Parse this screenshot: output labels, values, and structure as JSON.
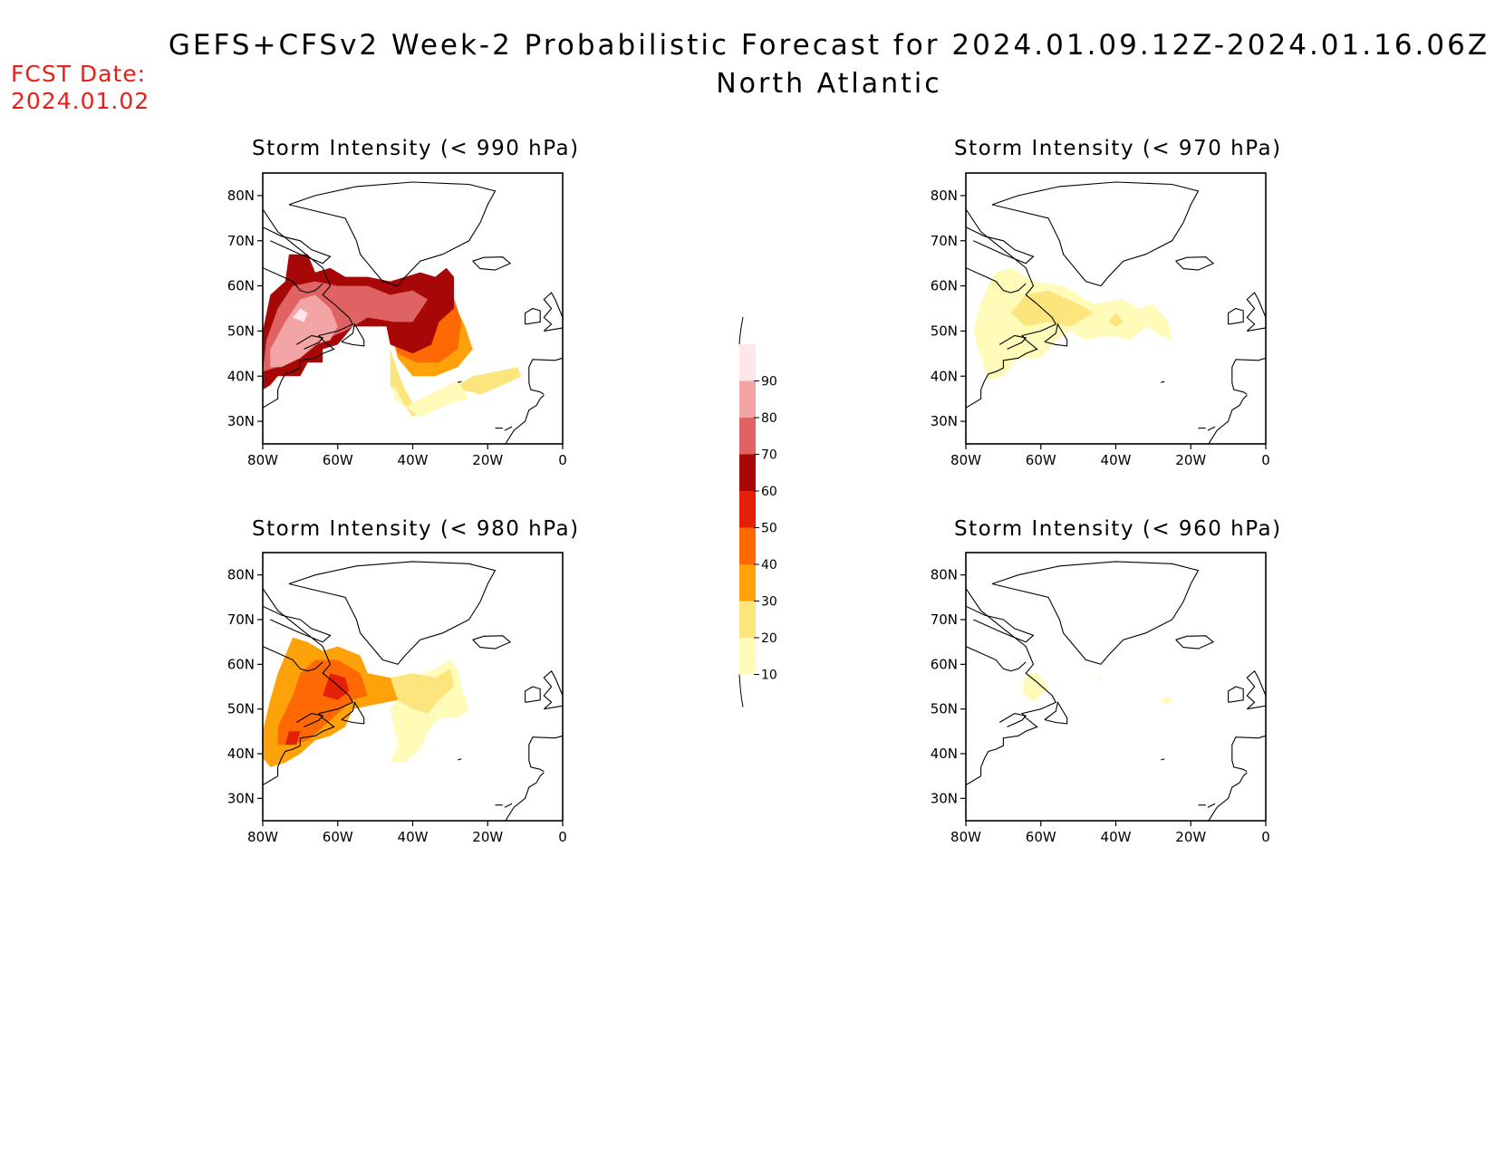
{
  "header": {
    "title": "GEFS+CFSv2 Week-2 Probabilistic Forecast for 2024.01.09.12Z-2024.01.16.06Z",
    "subtitle": "North Atlantic",
    "fcst_label": "FCST Date:",
    "fcst_value": "2024.01.02"
  },
  "axes": {
    "lon_labels": [
      "80W",
      "60W",
      "40W",
      "20W",
      "0"
    ],
    "lat_labels": [
      "80N",
      "70N",
      "60N",
      "50N",
      "40N",
      "30N"
    ]
  },
  "panels": [
    {
      "id": "p990",
      "title": "Storm Intensity (< 990 hPa)"
    },
    {
      "id": "p970",
      "title": "Storm Intensity (< 970 hPa)"
    },
    {
      "id": "p980",
      "title": "Storm Intensity (< 980 hPa)"
    },
    {
      "id": "p960",
      "title": "Storm Intensity (< 960 hPa)"
    }
  ],
  "colorbar": {
    "levels": [
      "10",
      "20",
      "30",
      "40",
      "50",
      "60",
      "70",
      "80",
      "90"
    ],
    "colors": [
      "#fffbb8",
      "#fde57e",
      "#fda208",
      "#fe6904",
      "#e42008",
      "#a60808",
      "#e06363",
      "#f3a4a4",
      "#ffe6ea"
    ]
  }
}
